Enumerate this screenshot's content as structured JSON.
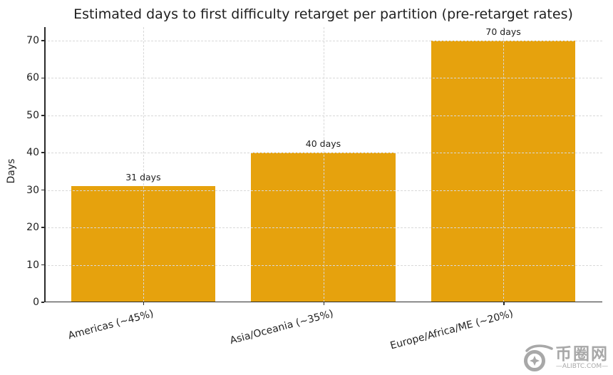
{
  "chart_data": {
    "type": "bar",
    "title": "Estimated days to first difficulty retarget per partition (pre-retarget rates)",
    "xlabel": "",
    "ylabel": "Days",
    "categories": [
      "Americas (~45%)",
      "Asia/Oceania (~35%)",
      "Europe/Africa/ME (~20%)"
    ],
    "values": [
      31,
      40,
      70
    ],
    "bar_labels": [
      "31 days",
      "40 days",
      "70 days"
    ],
    "yticks": [
      0,
      10,
      20,
      30,
      40,
      50,
      60,
      70
    ],
    "ylim": [
      0,
      73.6
    ],
    "grid": true,
    "grid_style": "dashed",
    "legend": "none",
    "xtick_rotation_deg": 15,
    "bar_color": "#E6A20D",
    "grid_color": "#D8D8D8",
    "spine_color": "#2B2B2B",
    "text_color": "#1F1F1F"
  },
  "watermark": {
    "brand": "币圈网",
    "domain": "—ALIBTC.COM—",
    "color": "#A8A8A8"
  }
}
